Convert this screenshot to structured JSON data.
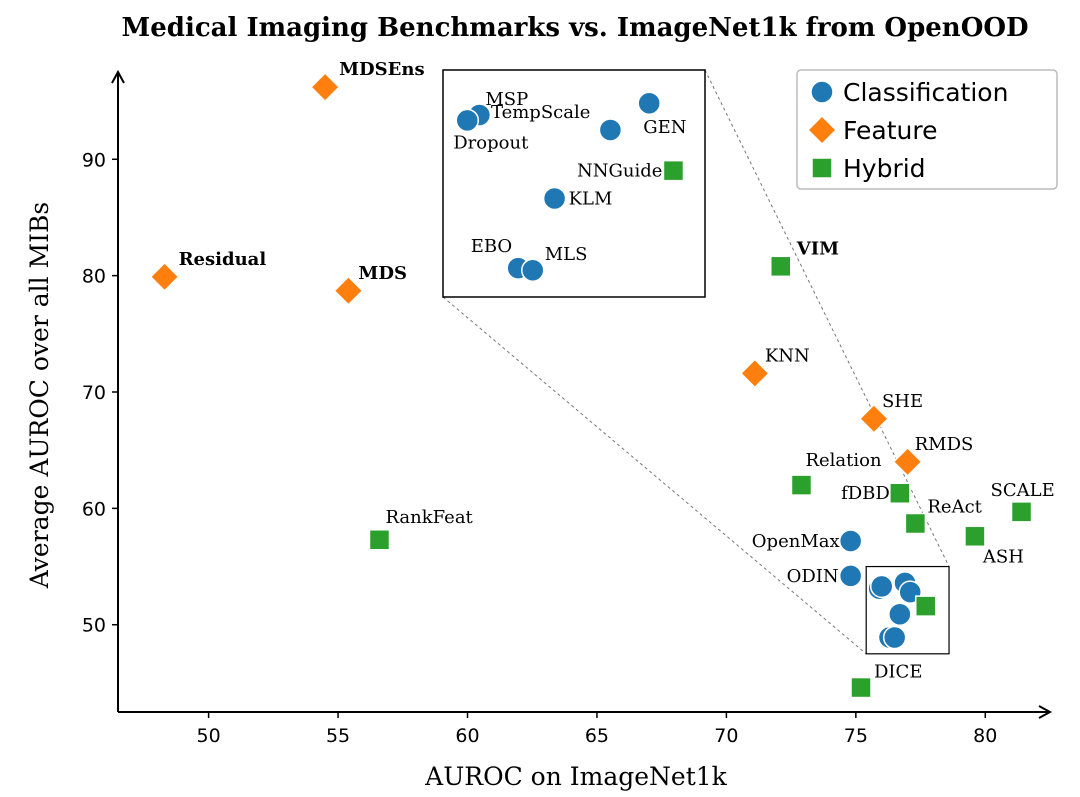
{
  "chart_data": {
    "type": "scatter",
    "title": "Medical Imaging Benchmarks vs. ImageNet1k from OpenOOD",
    "xlabel": "AUROC on ImageNet1k",
    "ylabel": "Average AUROC over all MIBs",
    "xlim": [
      46.5,
      82.5
    ],
    "ylim": [
      42.5,
      97.5
    ],
    "xticks": [
      50,
      55,
      60,
      65,
      70,
      75,
      80
    ],
    "yticks": [
      50,
      60,
      70,
      80,
      90
    ],
    "legend": {
      "position": "top-right",
      "entries": [
        {
          "name": "Classification",
          "color": "#1f77b4",
          "marker": "circle"
        },
        {
          "name": "Feature",
          "color": "#ff7f0e",
          "marker": "diamond"
        },
        {
          "name": "Hybrid",
          "color": "#2ca02c",
          "marker": "square"
        }
      ]
    },
    "series": [
      {
        "name": "Classification",
        "points": [
          {
            "label": "OpenMax",
            "x": 74.8,
            "y": 57.2
          },
          {
            "label": "ODIN",
            "x": 74.8,
            "y": 54.2
          }
        ]
      },
      {
        "name": "Feature",
        "points": [
          {
            "label": "MDSEns",
            "x": 54.5,
            "y": 96.2,
            "bold": true
          },
          {
            "label": "Residual",
            "x": 48.3,
            "y": 79.9,
            "bold": true
          },
          {
            "label": "MDS",
            "x": 55.4,
            "y": 78.7,
            "bold": true
          },
          {
            "label": "KNN",
            "x": 71.1,
            "y": 71.6
          },
          {
            "label": "SHE",
            "x": 75.7,
            "y": 67.7
          },
          {
            "label": "RMDS",
            "x": 77.0,
            "y": 64.0
          }
        ]
      },
      {
        "name": "Hybrid",
        "points": [
          {
            "label": "VIM",
            "x": 72.1,
            "y": 80.8,
            "bold": true
          },
          {
            "label": "RankFeat",
            "x": 56.6,
            "y": 57.3
          },
          {
            "label": "Relation",
            "x": 72.9,
            "y": 62.0
          },
          {
            "label": "fDBD",
            "x": 76.7,
            "y": 61.3
          },
          {
            "label": "ReAct",
            "x": 77.3,
            "y": 58.7
          },
          {
            "label": "SCALE",
            "x": 81.4,
            "y": 59.7
          },
          {
            "label": "ASH",
            "x": 79.6,
            "y": 57.6
          },
          {
            "label": "DICE",
            "x": 75.2,
            "y": 44.6
          }
        ]
      }
    ],
    "unlabeled_cluster": [
      {
        "series": "Classification",
        "x": 75.9,
        "y": 53.1
      },
      {
        "series": "Classification",
        "x": 76.0,
        "y": 53.3
      },
      {
        "series": "Classification",
        "x": 76.9,
        "y": 53.6
      },
      {
        "series": "Classification",
        "x": 77.1,
        "y": 52.8
      },
      {
        "series": "Classification",
        "x": 76.7,
        "y": 50.9
      },
      {
        "series": "Classification",
        "x": 76.3,
        "y": 48.9
      },
      {
        "series": "Classification",
        "x": 76.5,
        "y": 48.9
      },
      {
        "series": "Hybrid",
        "x": 77.7,
        "y": 51.6
      }
    ],
    "inset": {
      "source_box": {
        "xlim": [
          75.4,
          78.6
        ],
        "ylim": [
          47.5,
          55.0
        ]
      },
      "points": [
        {
          "label": "MSP",
          "series": "Classification",
          "x": 60.5,
          "y": 94.6
        },
        {
          "label": "Dropout",
          "series": "Classification",
          "x": 60.0,
          "y": 94.1
        },
        {
          "label": "TempScale",
          "series": "Classification",
          "x": 65.9,
          "y": 93.2
        },
        {
          "label": "GEN",
          "series": "Classification",
          "x": 67.5,
          "y": 95.7
        },
        {
          "label": "NNGuide",
          "series": "Hybrid",
          "x": 68.5,
          "y": 89.4
        },
        {
          "label": "KLM",
          "series": "Classification",
          "x": 63.6,
          "y": 86.8
        },
        {
          "label": "EBO",
          "series": "Classification",
          "x": 62.1,
          "y": 80.3
        },
        {
          "label": "MLS",
          "series": "Classification",
          "x": 62.7,
          "y": 80.1
        }
      ]
    }
  }
}
